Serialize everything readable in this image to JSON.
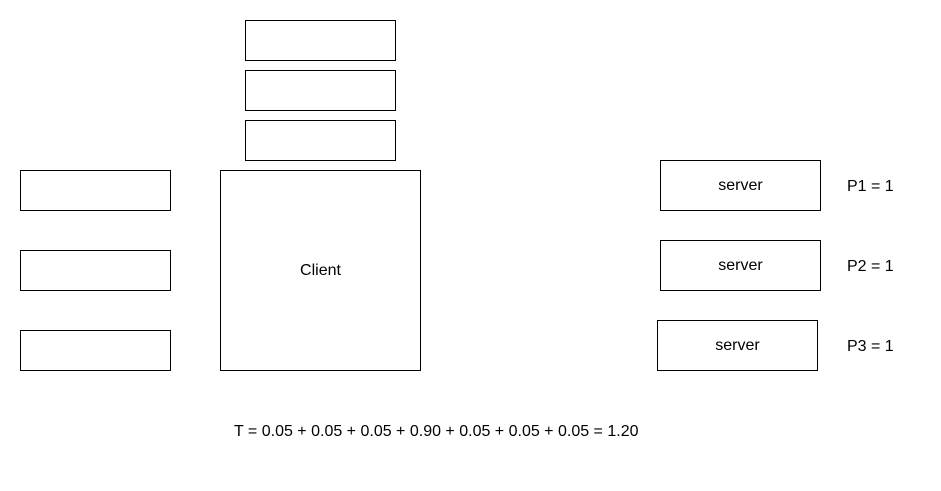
{
  "diagram": {
    "top_boxes": [
      "",
      "",
      ""
    ],
    "left_boxes": [
      "",
      "",
      ""
    ],
    "client": {
      "label": "Client"
    },
    "servers": [
      {
        "label": "server",
        "priority": "P1 = 1"
      },
      {
        "label": "server",
        "priority": "P2 = 1"
      },
      {
        "label": "server",
        "priority": "P3 = 1"
      }
    ],
    "formula": "T = 0.05 + 0.05 + 0.05 + 0.90 + 0.05 + 0.05 + 0.05 = 1.20"
  }
}
